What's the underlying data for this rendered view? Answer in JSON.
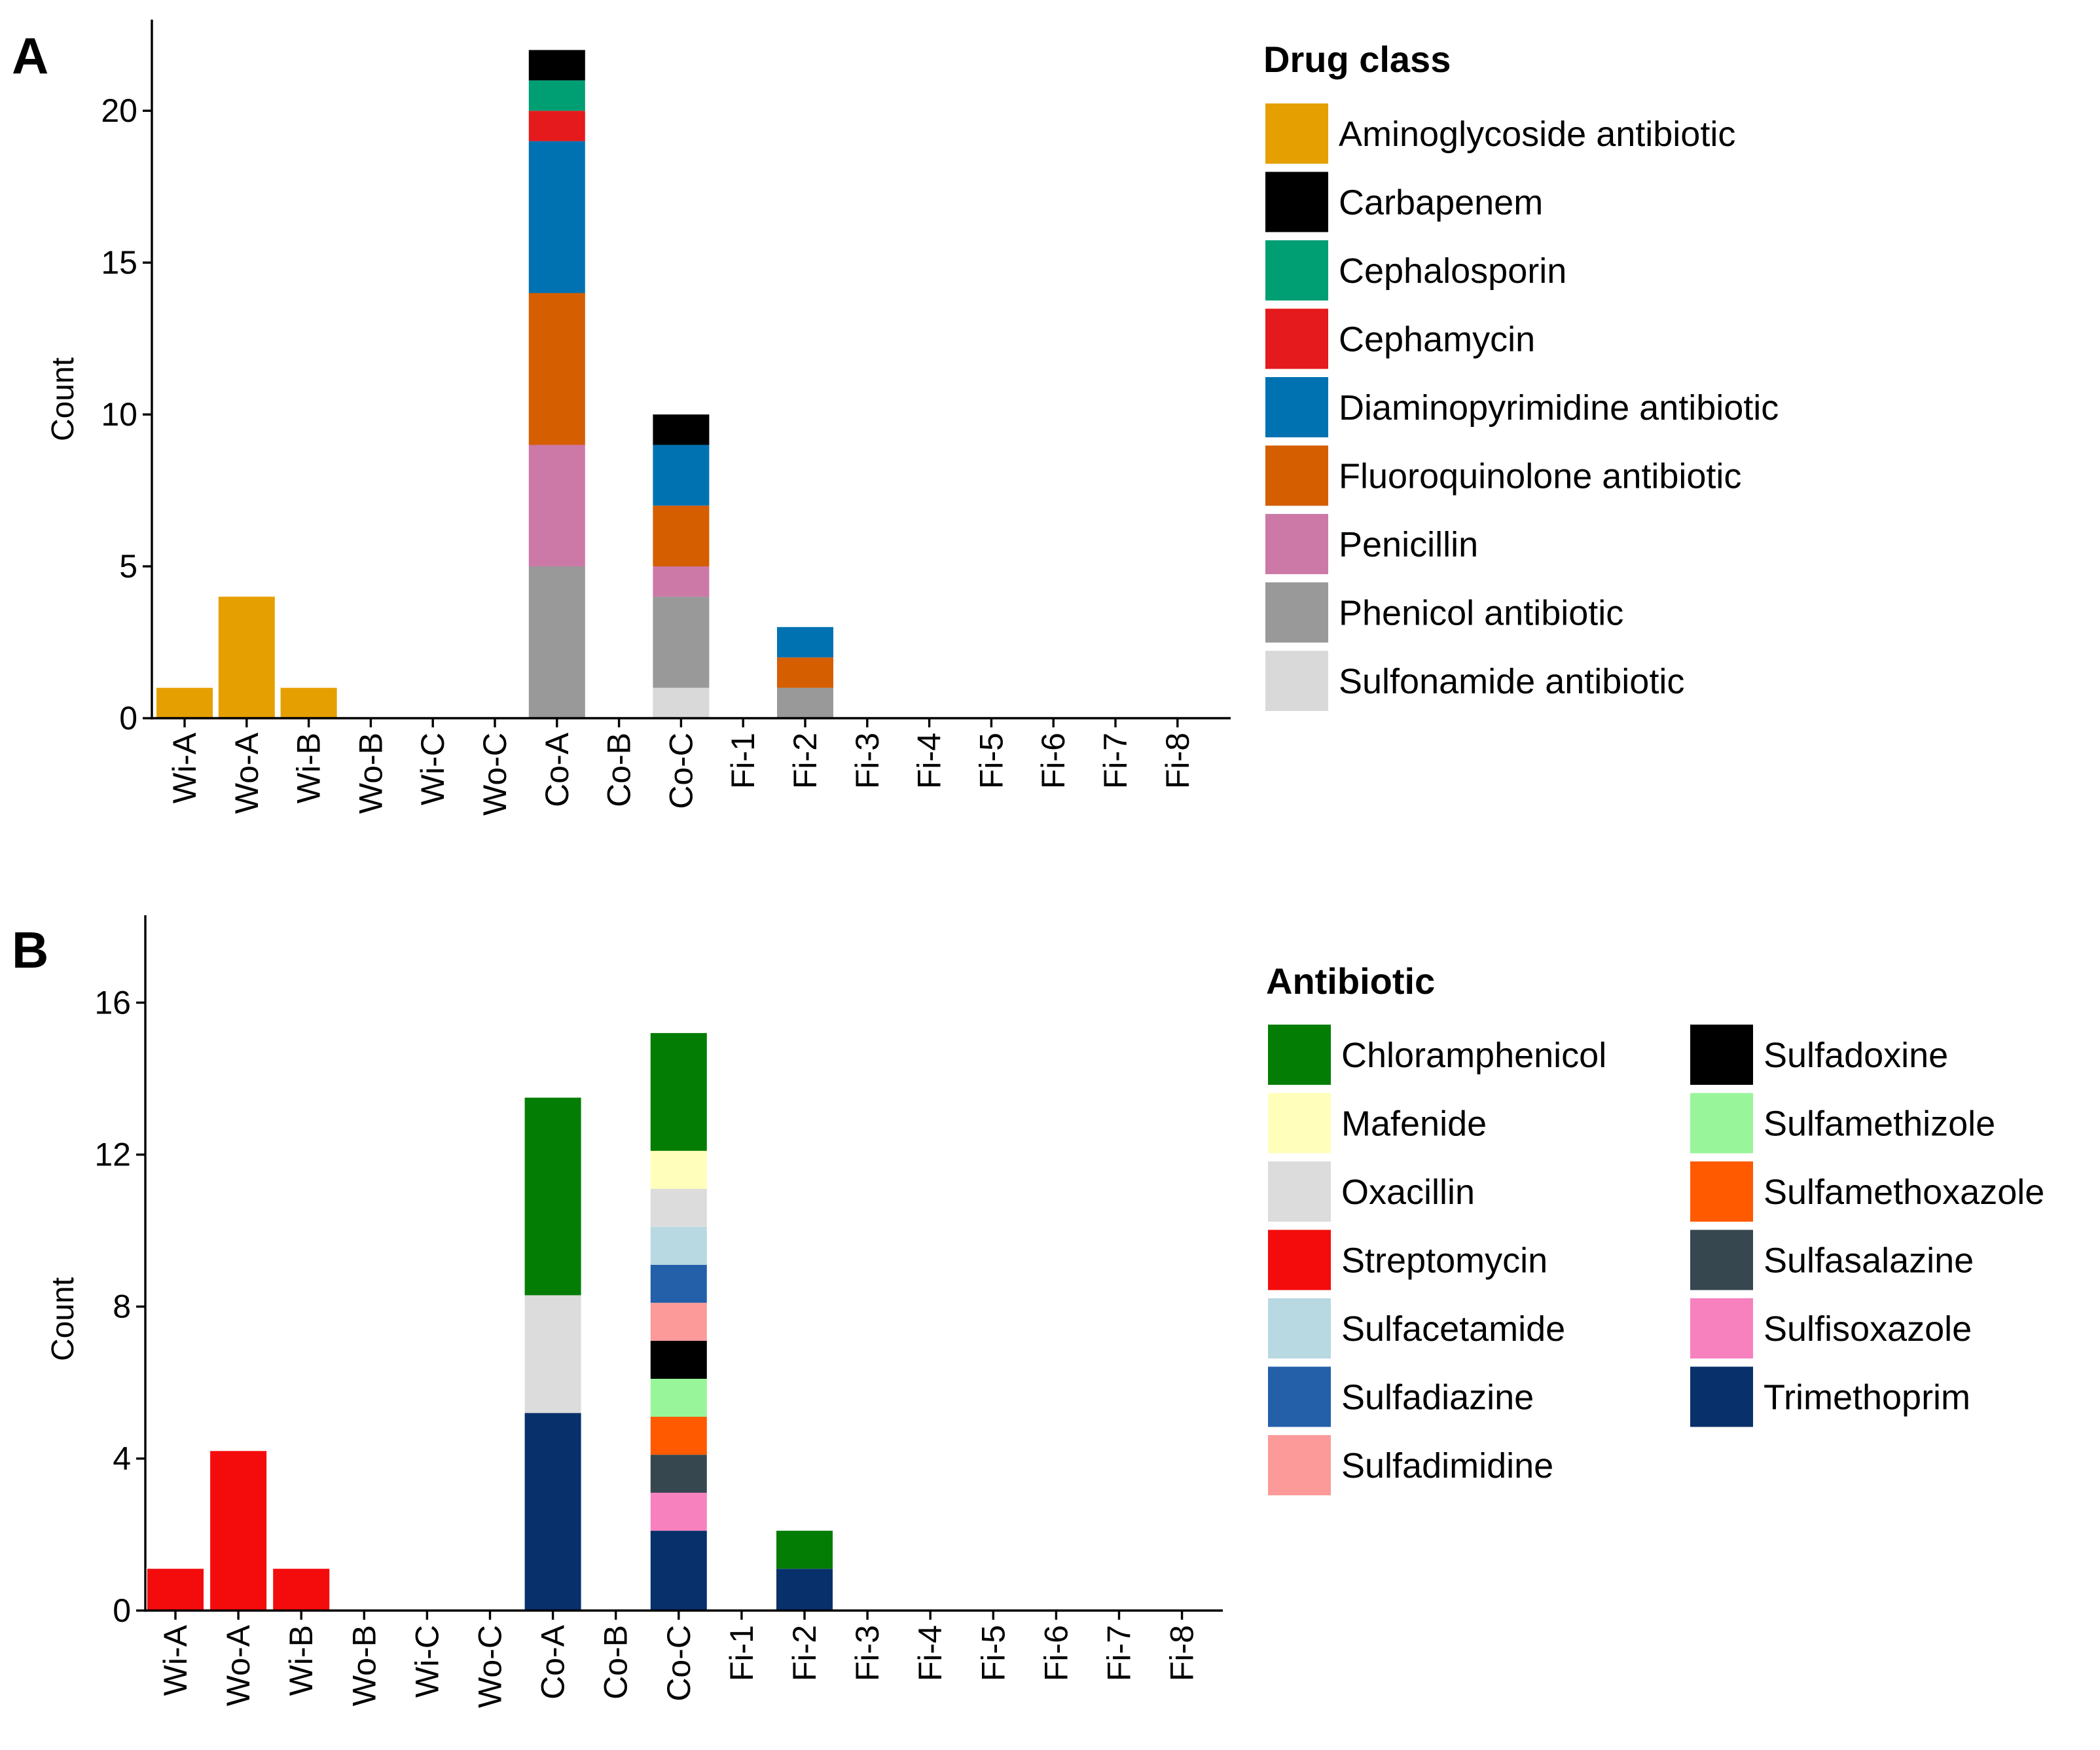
{
  "chart_data": [
    {
      "panel": "A",
      "type": "bar",
      "stacked": true,
      "ylabel": "Count",
      "ylim": [
        0,
        23
      ],
      "yticks": [
        0,
        5,
        10,
        15,
        20
      ],
      "categories": [
        "Wi-A",
        "Wo-A",
        "Wi-B",
        "Wo-B",
        "Wi-C",
        "Wo-C",
        "Co-A",
        "Co-B",
        "Co-C",
        "Fi-1",
        "Fi-2",
        "Fi-3",
        "Fi-4",
        "Fi-5",
        "Fi-6",
        "Fi-7",
        "Fi-8"
      ],
      "legend": {
        "title": "Drug class",
        "placement": "right",
        "columns": 1
      },
      "grid": false,
      "series": [
        {
          "name": "Sulfonamide antibiotic",
          "color": "#d9d9d9",
          "values": [
            0,
            0,
            0,
            0,
            0,
            0,
            0,
            0,
            1,
            0,
            0,
            0,
            0,
            0,
            0,
            0,
            0
          ]
        },
        {
          "name": "Phenicol antibiotic",
          "color": "#999999",
          "values": [
            0,
            0,
            0,
            0,
            0,
            0,
            5,
            0,
            3,
            0,
            1,
            0,
            0,
            0,
            0,
            0,
            0
          ]
        },
        {
          "name": "Penicillin",
          "color": "#cc79a7",
          "values": [
            0,
            0,
            0,
            0,
            0,
            0,
            4,
            0,
            1,
            0,
            0,
            0,
            0,
            0,
            0,
            0,
            0
          ]
        },
        {
          "name": "Fluoroquinolone antibiotic",
          "color": "#d55e00",
          "values": [
            0,
            0,
            0,
            0,
            0,
            0,
            5,
            0,
            2,
            0,
            1,
            0,
            0,
            0,
            0,
            0,
            0
          ]
        },
        {
          "name": "Diaminopyrimidine antibiotic",
          "color": "#0072b2",
          "values": [
            0,
            0,
            0,
            0,
            0,
            0,
            5,
            0,
            2,
            0,
            1,
            0,
            0,
            0,
            0,
            0,
            0
          ]
        },
        {
          "name": "Cephamycin",
          "color": "#e41a1c",
          "values": [
            0,
            0,
            0,
            0,
            0,
            0,
            1,
            0,
            0,
            0,
            0,
            0,
            0,
            0,
            0,
            0,
            0
          ]
        },
        {
          "name": "Cephalosporin",
          "color": "#009e73",
          "values": [
            0,
            0,
            0,
            0,
            0,
            0,
            1,
            0,
            0,
            0,
            0,
            0,
            0,
            0,
            0,
            0,
            0
          ]
        },
        {
          "name": "Carbapenem",
          "color": "#000000",
          "values": [
            0,
            0,
            0,
            0,
            0,
            0,
            1,
            0,
            1,
            0,
            0,
            0,
            0,
            0,
            0,
            0,
            0
          ]
        },
        {
          "name": "Aminoglycoside antibiotic",
          "color": "#e69f00",
          "values": [
            1,
            4,
            1,
            0,
            0,
            0,
            0,
            0,
            0,
            0,
            0,
            0,
            0,
            0,
            0,
            0,
            0
          ]
        }
      ],
      "legend_order": [
        "Aminoglycoside antibiotic",
        "Carbapenem",
        "Cephalosporin",
        "Cephamycin",
        "Diaminopyrimidine antibiotic",
        "Fluoroquinolone antibiotic",
        "Penicillin",
        "Phenicol antibiotic",
        "Sulfonamide antibiotic"
      ]
    },
    {
      "panel": "B",
      "type": "bar",
      "stacked": true,
      "ylabel": "Count",
      "ylim": [
        0,
        18.3
      ],
      "yticks": [
        0,
        4,
        8,
        12,
        16
      ],
      "categories": [
        "Wi-A",
        "Wo-A",
        "Wi-B",
        "Wo-B",
        "Wi-C",
        "Wo-C",
        "Co-A",
        "Co-B",
        "Co-C",
        "Fi-1",
        "Fi-2",
        "Fi-3",
        "Fi-4",
        "Fi-5",
        "Fi-6",
        "Fi-7",
        "Fi-8"
      ],
      "legend": {
        "title": "Antibiotic",
        "placement": "right",
        "columns": 2
      },
      "grid": false,
      "series": [
        {
          "name": "Trimethoprim",
          "color": "#08306b",
          "values": [
            0,
            0,
            0,
            0,
            0,
            0,
            5.2,
            0,
            2.1,
            0,
            1.1,
            0,
            0,
            0,
            0,
            0,
            0
          ]
        },
        {
          "name": "Sulfisoxazole",
          "color": "#f781bf",
          "values": [
            0,
            0,
            0,
            0,
            0,
            0,
            0,
            0,
            1,
            0,
            0,
            0,
            0,
            0,
            0,
            0,
            0
          ]
        },
        {
          "name": "Sulfasalazine",
          "color": "#37474f",
          "values": [
            0,
            0,
            0,
            0,
            0,
            0,
            0,
            0,
            1,
            0,
            0,
            0,
            0,
            0,
            0,
            0,
            0
          ]
        },
        {
          "name": "Sulfamethoxazole",
          "color": "#ff5a00",
          "values": [
            0,
            0,
            0,
            0,
            0,
            0,
            0,
            0,
            1,
            0,
            0,
            0,
            0,
            0,
            0,
            0,
            0
          ]
        },
        {
          "name": "Sulfamethizole",
          "color": "#99f599",
          "values": [
            0,
            0,
            0,
            0,
            0,
            0,
            0,
            0,
            1,
            0,
            0,
            0,
            0,
            0,
            0,
            0,
            0
          ]
        },
        {
          "name": "Sulfadoxine",
          "color": "#000000",
          "values": [
            0,
            0,
            0,
            0,
            0,
            0,
            0,
            0,
            1,
            0,
            0,
            0,
            0,
            0,
            0,
            0,
            0
          ]
        },
        {
          "name": "Sulfadimidine",
          "color": "#fb9a99",
          "values": [
            0,
            0,
            0,
            0,
            0,
            0,
            0,
            0,
            1,
            0,
            0,
            0,
            0,
            0,
            0,
            0,
            0
          ]
        },
        {
          "name": "Sulfadiazine",
          "color": "#2460aa",
          "values": [
            0,
            0,
            0,
            0,
            0,
            0,
            0,
            0,
            1,
            0,
            0,
            0,
            0,
            0,
            0,
            0,
            0
          ]
        },
        {
          "name": "Sulfacetamide",
          "color": "#b8d8e2",
          "values": [
            0,
            0,
            0,
            0,
            0,
            0,
            0,
            0,
            1,
            0,
            0,
            0,
            0,
            0,
            0,
            0,
            0
          ]
        },
        {
          "name": "Streptomycin",
          "color": "#f40c0c",
          "values": [
            1.1,
            4.2,
            1.1,
            0,
            0,
            0,
            0,
            0,
            0,
            0,
            0,
            0,
            0,
            0,
            0,
            0,
            0
          ]
        },
        {
          "name": "Oxacillin",
          "color": "#dcdcdc",
          "values": [
            0,
            0,
            0,
            0,
            0,
            0,
            3.1,
            0,
            1,
            0,
            0,
            0,
            0,
            0,
            0,
            0,
            0
          ]
        },
        {
          "name": "Mafenide",
          "color": "#ffffbb",
          "values": [
            0,
            0,
            0,
            0,
            0,
            0,
            0,
            0,
            1,
            0,
            0,
            0,
            0,
            0,
            0,
            0,
            0
          ]
        },
        {
          "name": "Chloramphenicol",
          "color": "#047d04",
          "values": [
            0,
            0,
            0,
            0,
            0,
            0,
            5.2,
            0,
            3.1,
            0,
            1,
            0,
            0,
            0,
            0,
            0,
            0
          ]
        }
      ],
      "legend_order": [
        "Chloramphenicol",
        "Mafenide",
        "Oxacillin",
        "Streptomycin",
        "Sulfacetamide",
        "Sulfadiazine",
        "Sulfadimidine",
        "Sulfadoxine",
        "Sulfamethizole",
        "Sulfamethoxazole",
        "Sulfasalazine",
        "Sulfisoxazole",
        "Trimethoprim"
      ]
    }
  ]
}
